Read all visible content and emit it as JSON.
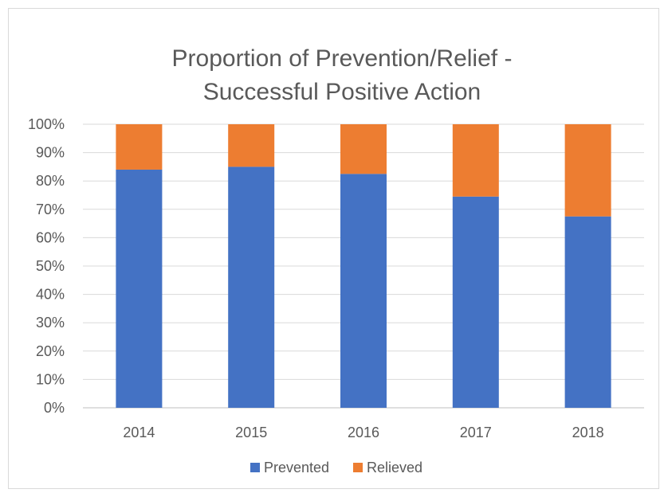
{
  "chart_data": {
    "type": "bar",
    "stacked": true,
    "title_lines": [
      "Proportion of Prevention/Relief -",
      "Successful Positive Action"
    ],
    "categories": [
      "2014",
      "2015",
      "2016",
      "2017",
      "2018"
    ],
    "series": [
      {
        "name": "Prevented",
        "color": "#4472c4",
        "values": [
          0.84,
          0.85,
          0.825,
          0.745,
          0.675
        ]
      },
      {
        "name": "Relieved",
        "color": "#ed7d31",
        "values": [
          0.16,
          0.15,
          0.175,
          0.255,
          0.325
        ]
      }
    ],
    "ylim": [
      0,
      1
    ],
    "y_ticks": [
      "0%",
      "10%",
      "20%",
      "30%",
      "40%",
      "50%",
      "60%",
      "70%",
      "80%",
      "90%",
      "100%"
    ],
    "grid": true,
    "legend_position": "bottom"
  }
}
